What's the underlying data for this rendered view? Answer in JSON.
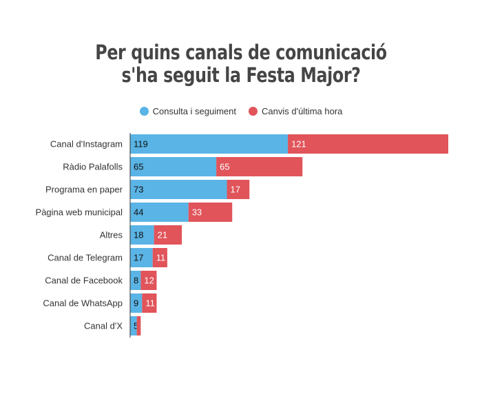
{
  "title_line1": "Per quins canals de comunicació",
  "title_line2": "s'ha seguit la Festa Major?",
  "colors": {
    "consulta": "#5ab4e5",
    "canvis": "#e0545a",
    "axis": "#333333"
  },
  "chart_data": {
    "type": "bar",
    "orientation": "horizontal",
    "stacked": true,
    "title": "Per quins canals de comunicació s'ha seguit la Festa Major?",
    "legend_position": "top-center",
    "categories": [
      "Canal d'Instagram",
      "Ràdio Palafolls",
      "Programa en paper",
      "Pàgina web municipal",
      "Altres",
      "Canal de Telegram",
      "Canal de Facebook",
      "Canal de WhatsApp",
      "Canal d'X"
    ],
    "series": [
      {
        "name": "Consulta i seguiment",
        "values": [
          119,
          65,
          73,
          44,
          18,
          17,
          8,
          9,
          5
        ]
      },
      {
        "name": "Canvis d'última hora",
        "values": [
          121,
          65,
          17,
          33,
          21,
          11,
          12,
          11,
          3
        ]
      }
    ],
    "xlim": [
      0,
      240
    ],
    "grid": false
  }
}
